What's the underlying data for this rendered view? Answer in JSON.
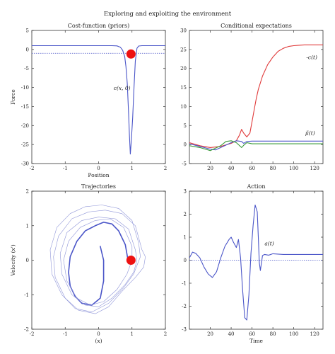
{
  "figure": {
    "title": "Exploring and exploiting the environment"
  },
  "colors": {
    "blue": "#4a55c8",
    "red": "#e03a3a",
    "green": "#3a9a3a",
    "dot": "#ee1111",
    "axis": "#333333"
  },
  "chart_data": [
    {
      "id": "cost",
      "type": "line",
      "title": "Cost-function (priors)",
      "xlabel": "Position",
      "ylabel": "Force",
      "xlim": [
        -2,
        2
      ],
      "ylim": [
        -30,
        5
      ],
      "xticks": [
        -2,
        -1,
        0,
        1,
        2
      ],
      "yticks": [
        5,
        0,
        -5,
        -10,
        -15,
        -20,
        -25,
        -30
      ],
      "series": [
        {
          "name": "c(x, 0)",
          "x": [
            -2,
            0.4,
            0.55,
            0.65,
            0.72,
            0.78,
            0.82,
            0.86,
            0.9,
            0.92,
            0.95,
            0.98,
            1.02,
            1.06,
            1.1,
            1.15,
            1.2,
            1.3,
            1.45,
            2
          ],
          "y": [
            1,
            1,
            0.95,
            0.6,
            -0.2,
            -1.8,
            -4.5,
            -9,
            -17,
            -22,
            -27.5,
            -24,
            -18,
            -10,
            -3,
            0.3,
            0.9,
            1,
            1,
            1
          ]
        }
      ],
      "reference_line": {
        "y": -1.0,
        "style": "dotted"
      },
      "marker": {
        "x": 0.97,
        "y": -1.2
      },
      "annotations": [
        {
          "text": "c(x, 0)",
          "x": 0.45,
          "y": -10.6
        }
      ]
    },
    {
      "id": "cond",
      "type": "line",
      "title": "Conditional expectations",
      "xlabel": "",
      "ylabel": "",
      "xlim": [
        0,
        128
      ],
      "ylim": [
        -5,
        30
      ],
      "xticks": [
        20,
        40,
        60,
        80,
        100,
        120
      ],
      "yticks": [
        30,
        25,
        20,
        15,
        10,
        5,
        0,
        -5
      ],
      "series": [
        {
          "name": "-c(t)",
          "color": "red",
          "x": [
            0,
            10,
            20,
            30,
            40,
            45,
            48,
            50,
            52,
            55,
            58,
            60,
            62,
            64,
            66,
            70,
            75,
            80,
            85,
            90,
            95,
            100,
            105,
            110,
            115,
            120,
            128
          ],
          "y": [
            0.5,
            -0.3,
            -0.8,
            -0.5,
            0.3,
            1,
            2.5,
            4,
            3,
            2,
            3,
            6,
            9,
            12,
            14.5,
            18,
            21,
            23,
            24.5,
            25.3,
            25.8,
            26,
            26.1,
            26.2,
            26.2,
            26.2,
            26.2
          ]
        },
        {
          "name": "μ̃(t)",
          "color": "blue",
          "x": [
            0,
            10,
            20,
            25,
            30,
            40,
            45,
            50,
            52,
            55,
            60,
            70,
            80,
            100,
            128
          ],
          "y": [
            0.2,
            -0.5,
            -1.2,
            -1.4,
            -0.8,
            0.5,
            1.0,
            0.8,
            0.3,
            0.8,
            0.9,
            0.9,
            0.9,
            0.9,
            0.9
          ]
        },
        {
          "name": "",
          "color": "green",
          "x": [
            0,
            10,
            20,
            30,
            35,
            40,
            45,
            50,
            52,
            55,
            60,
            70,
            80,
            100,
            128
          ],
          "y": [
            -0.3,
            -0.8,
            -1.6,
            -0.3,
            0.8,
            1.0,
            0.5,
            -0.8,
            -0.2,
            0.5,
            0.2,
            0.2,
            0.2,
            0.2,
            0.2
          ]
        }
      ],
      "annotations": [
        {
          "text": "-c(t)",
          "x": 112,
          "y": 22.5
        },
        {
          "text": "μ̃(t)",
          "x": 111,
          "y": 2.5
        }
      ]
    },
    {
      "id": "traj",
      "type": "line",
      "title": "Trajectories",
      "xlabel": "(x)",
      "ylabel": "Velocity (x')",
      "xlim": [
        -2,
        2
      ],
      "ylim": [
        -2,
        2
      ],
      "xticks": [
        -2,
        -1,
        0,
        1,
        2
      ],
      "yticks": [
        2,
        1,
        0,
        -1,
        -2
      ],
      "series": [
        {
          "name": "",
          "style": "bold",
          "closed": false,
          "x": [
            0.9,
            0.8,
            0.6,
            0.4,
            0.15,
            -0.1,
            -0.4,
            -0.65,
            -0.85,
            -0.9,
            -0.85,
            -0.7,
            -0.5,
            -0.2,
            0.05,
            0.15,
            0.15,
            0.05
          ],
          "y": [
            -0.1,
            0.45,
            0.85,
            1.05,
            1.1,
            1.0,
            0.85,
            0.55,
            0.1,
            -0.35,
            -0.75,
            -1.05,
            -1.25,
            -1.3,
            -1.1,
            -0.6,
            0.0,
            0.4
          ]
        },
        {
          "name": "",
          "style": "thin",
          "closed": true,
          "x": [
            1.3,
            1.1,
            0.7,
            0.2,
            -0.3,
            -0.8,
            -1.2,
            -1.35,
            -1.3,
            -1.0,
            -0.6,
            -0.1,
            0.3,
            0.7,
            1.1,
            1.35,
            1.4
          ],
          "y": [
            0.3,
            1.0,
            1.35,
            1.45,
            1.4,
            1.2,
            0.7,
            0.1,
            -0.5,
            -1.1,
            -1.45,
            -1.55,
            -1.35,
            -0.9,
            -0.5,
            -0.2,
            0.1
          ]
        },
        {
          "name": "",
          "style": "thin",
          "closed": true,
          "x": [
            1.1,
            0.9,
            0.5,
            0.0,
            -0.5,
            -0.95,
            -1.15,
            -1.1,
            -0.8,
            -0.4,
            0.0,
            0.4,
            0.8,
            1.05,
            1.15
          ],
          "y": [
            0.3,
            0.9,
            1.2,
            1.25,
            1.15,
            0.8,
            0.2,
            -0.4,
            -1.0,
            -1.3,
            -1.35,
            -1.1,
            -0.7,
            -0.35,
            0.0
          ]
        },
        {
          "name": "",
          "style": "thin",
          "closed": true,
          "x": [
            1.2,
            1.0,
            0.6,
            0.1,
            -0.4,
            -0.85,
            -1.25,
            -1.45,
            -1.4,
            -1.1,
            -0.7,
            -0.2,
            0.3,
            0.75,
            1.05,
            1.25
          ],
          "y": [
            0.5,
            1.15,
            1.5,
            1.6,
            1.55,
            1.35,
            0.95,
            0.3,
            -0.4,
            -1.0,
            -1.4,
            -1.5,
            -1.25,
            -0.8,
            -0.4,
            0.1
          ]
        },
        {
          "name": "",
          "style": "thin",
          "closed": true,
          "x": [
            1.0,
            0.75,
            0.35,
            -0.1,
            -0.55,
            -0.9,
            -1.05,
            -0.95,
            -0.65,
            -0.25,
            0.15,
            0.55,
            0.85,
            1.0
          ],
          "y": [
            0.4,
            0.95,
            1.2,
            1.15,
            0.95,
            0.55,
            0.0,
            -0.6,
            -1.1,
            -1.3,
            -1.2,
            -0.85,
            -0.4,
            0.0
          ]
        }
      ],
      "marker": {
        "x": 0.97,
        "y": 0.0
      }
    },
    {
      "id": "action",
      "type": "line",
      "title": "Action",
      "xlabel": "Time",
      "ylabel": "",
      "xlim": [
        0,
        128
      ],
      "ylim": [
        -3,
        3
      ],
      "xticks": [
        20,
        40,
        60,
        80,
        100,
        120
      ],
      "yticks": [
        3,
        2,
        1,
        0,
        -1,
        -2,
        -3
      ],
      "series": [
        {
          "name": "a(t)",
          "x": [
            0,
            3,
            6,
            10,
            14,
            18,
            22,
            26,
            30,
            34,
            38,
            40,
            42,
            45,
            47,
            49,
            51,
            53,
            55,
            57,
            59,
            61,
            63,
            65,
            66,
            67,
            68,
            70,
            72,
            76,
            80,
            90,
            100,
            110,
            120,
            128
          ],
          "y": [
            0.1,
            0.35,
            0.3,
            0.1,
            -0.3,
            -0.6,
            -0.75,
            -0.5,
            0.1,
            0.6,
            0.9,
            1.0,
            0.8,
            0.55,
            0.9,
            0.1,
            -1.3,
            -2.5,
            -2.6,
            -1.5,
            0.3,
            1.5,
            2.4,
            2.1,
            1.0,
            -0.1,
            -0.45,
            0.2,
            0.25,
            0.22,
            0.28,
            0.25,
            0.25,
            0.25,
            0.25,
            0.25
          ]
        }
      ],
      "reference_line": {
        "y": 0,
        "style": "dotted"
      },
      "annotations": [
        {
          "text": "a(t)",
          "x": 72,
          "y": 0.65
        }
      ]
    }
  ]
}
